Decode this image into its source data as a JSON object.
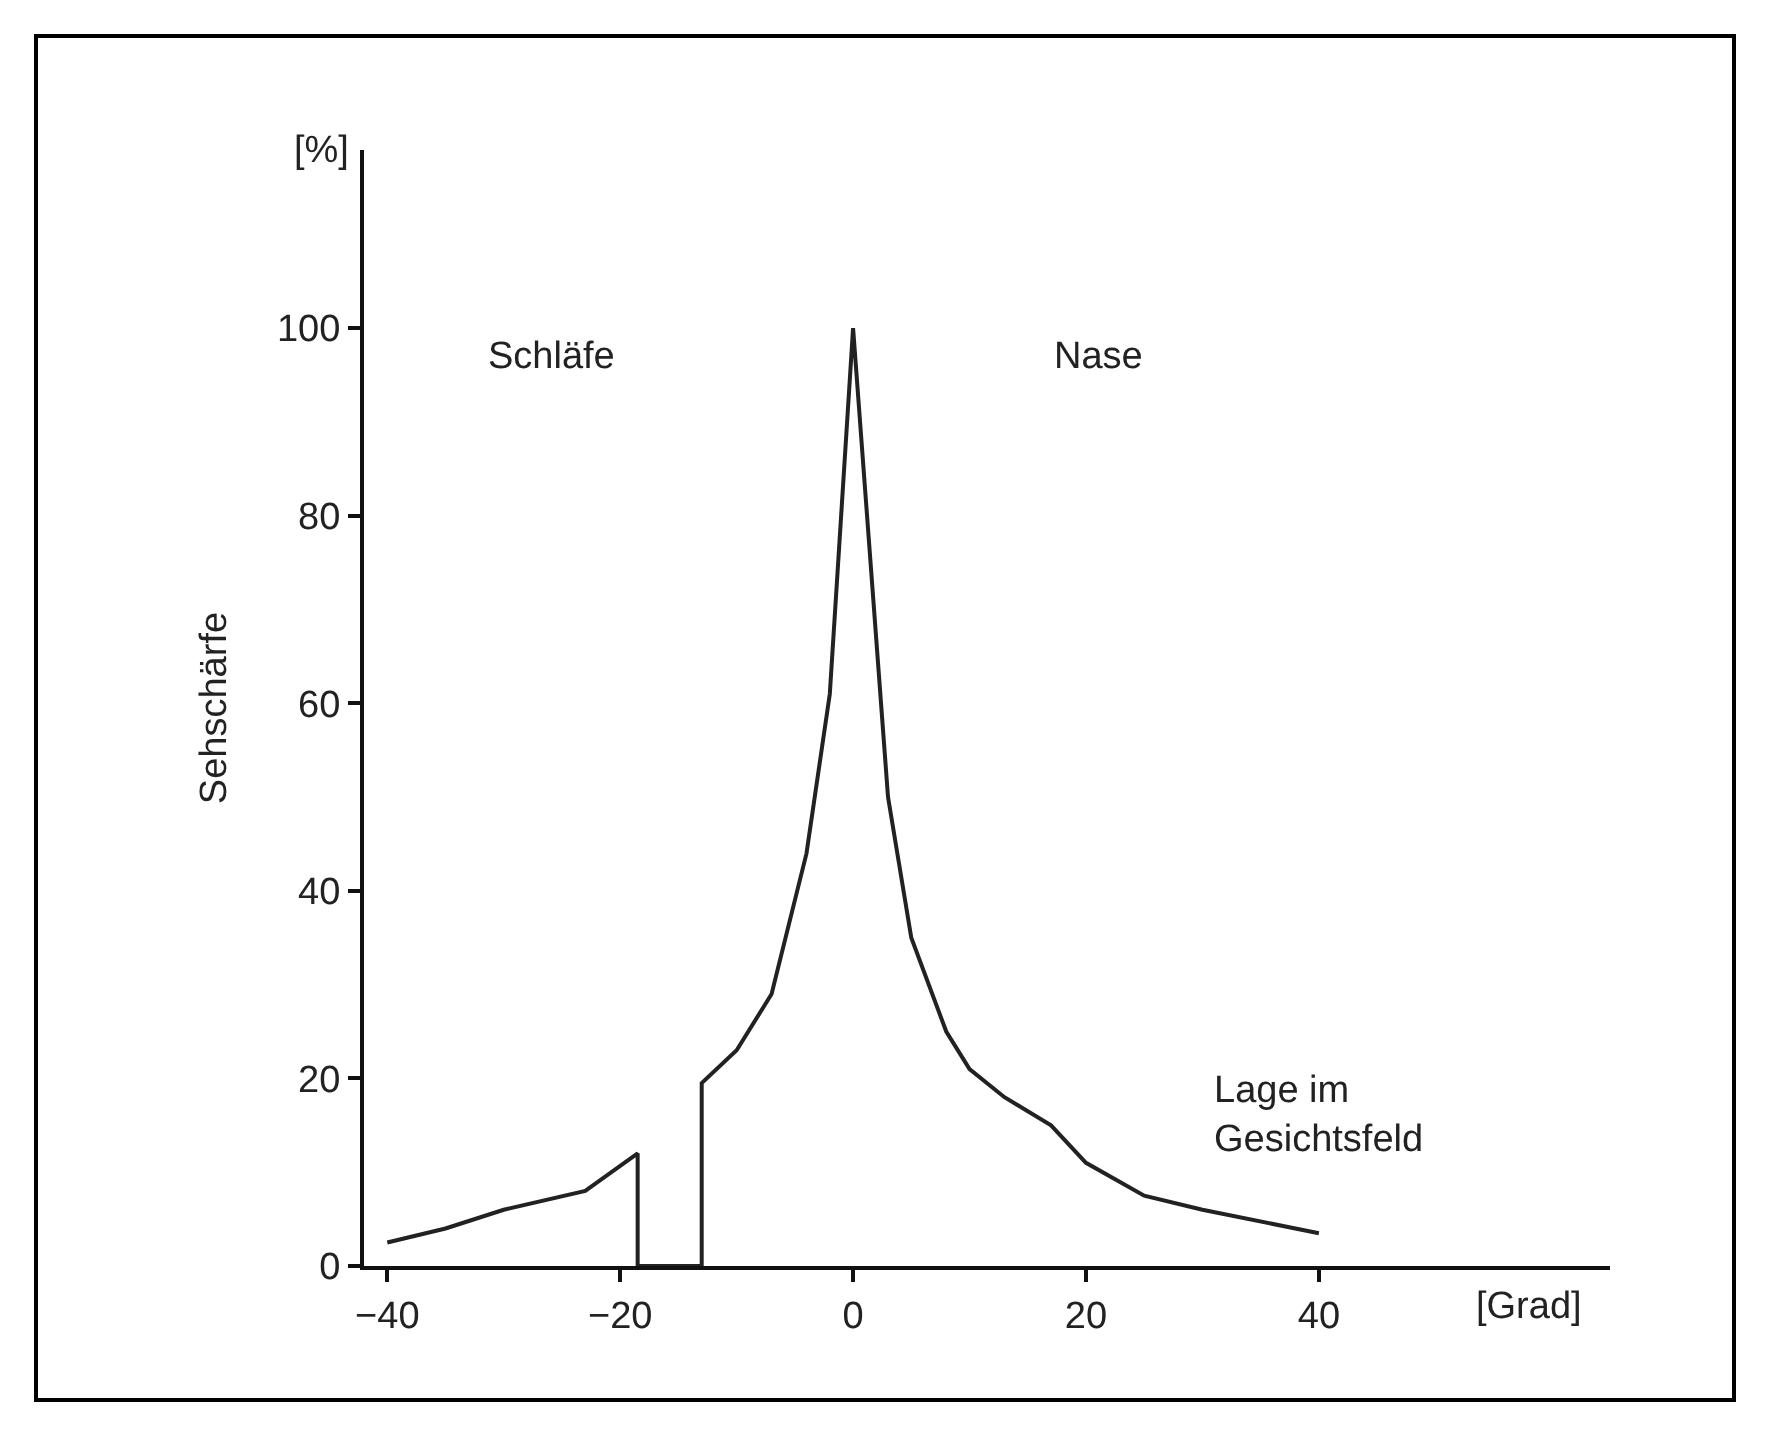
{
  "chart_data": {
    "type": "line",
    "ylabel": "Sehschärfe",
    "xlabel": "[Grad]",
    "annotations": [
      "[%]",
      "Schläfe",
      "Nase",
      "Lage im\nGesichtsfeld"
    ],
    "x": [
      -40,
      -35,
      -30,
      -23,
      -18.5,
      -18.5,
      -13,
      -13,
      -10,
      -7,
      -4,
      -2,
      0,
      3,
      5,
      8,
      10,
      13,
      17,
      20,
      25,
      30,
      40
    ],
    "values": [
      2.5,
      4,
      6,
      8,
      12,
      0,
      0,
      19.5,
      23,
      29,
      44,
      61,
      100,
      50,
      35,
      25,
      21,
      18,
      15,
      11,
      7.5,
      6,
      3.5
    ],
    "color": "#222222",
    "line_style": "solid",
    "marker": "none",
    "xlim": [
      -42,
      65
    ],
    "xticks": [
      {
        "value": -40,
        "label": "−40"
      },
      {
        "value": -20,
        "label": "−20"
      },
      0,
      20,
      40
    ],
    "ylim": [
      0,
      119
    ],
    "yticks": [
      0,
      20,
      40,
      60,
      80,
      100
    ],
    "grid": false,
    "legend": false
  }
}
